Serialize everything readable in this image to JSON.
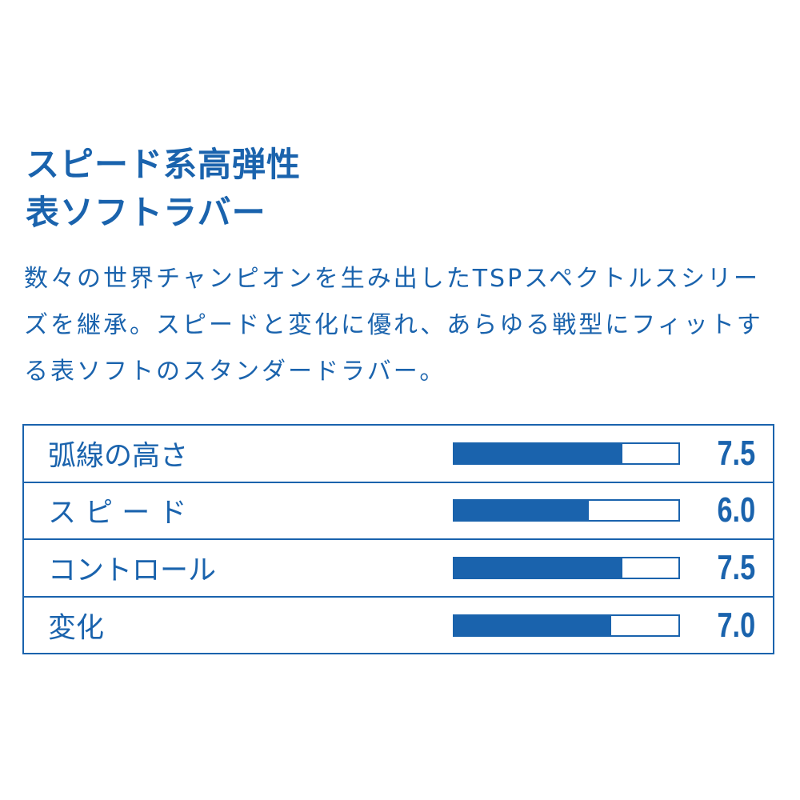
{
  "headline": {
    "line1": "スピード系高弾性",
    "line2": "表ソフトラバー"
  },
  "description": "数々の世界チャンピオンを生み出したTSPスペクトルスシリーズを継承。スピードと変化に優れ、あらゆる戦型にフィットする表ソフトのスタンダードラバー。",
  "ratings": [
    {
      "label": "弧線の高さ",
      "value": "7.5",
      "fraction": 0.75
    },
    {
      "label": "ス ピ ー ド",
      "value": "6.0",
      "fraction": 0.6
    },
    {
      "label": "コントロール",
      "value": "7.5",
      "fraction": 0.75
    },
    {
      "label": "変化",
      "value": "7.0",
      "fraction": 0.7
    }
  ],
  "colors": {
    "accent": "#1a63ad",
    "background": "#ffffff"
  }
}
